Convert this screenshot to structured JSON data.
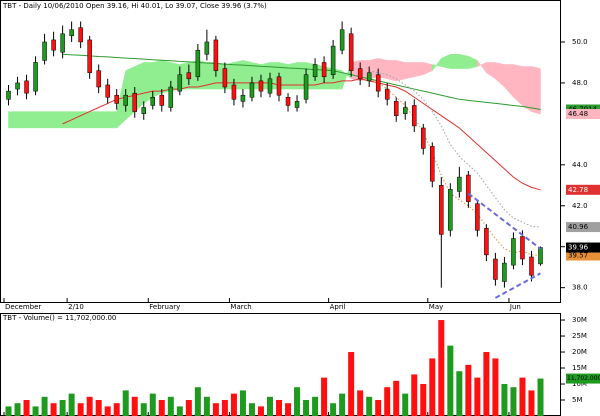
{
  "chart_data": {
    "type": "candlestick",
    "title": "TBT - Daily 10/06/2010 Open 39.16, Hi 40.01, Lo 39.07, Close 39.96 (3.7%)",
    "categories": [
      "December",
      null,
      null,
      null,
      null,
      null,
      null,
      "2/10",
      null,
      null,
      null,
      null,
      null,
      null,
      null,
      null,
      "February",
      null,
      null,
      null,
      null,
      null,
      null,
      null,
      null,
      "March",
      null,
      null,
      null,
      null,
      null,
      null,
      null,
      null,
      null,
      null,
      "April",
      null,
      null,
      null,
      null,
      null,
      null,
      null,
      null,
      null,
      null,
      "May",
      null,
      null,
      null,
      null,
      null,
      null,
      null,
      null,
      "Jun",
      null,
      null,
      null
    ],
    "open": [
      47.2,
      47.7,
      48.1,
      47.6,
      49.1,
      50.1,
      49.5,
      50.3,
      50.7,
      50.1,
      48.6,
      47.9,
      47.4,
      46.9,
      47.5,
      46.5,
      46.9,
      47.4,
      46.8,
      47.6,
      48.5,
      48.3,
      49.4,
      50.1,
      48.7,
      47.9,
      47.1,
      47.3,
      48.1,
      47.5,
      48.3,
      47.3,
      46.8,
      47.2,
      48.3,
      49.0,
      48.4,
      49.6,
      50.4,
      48.7,
      48.1,
      48.4,
      47.7,
      47.1,
      46.5,
      46.9,
      45.8,
      44.9,
      43.0,
      40.8,
      42.7,
      43.5,
      42.1,
      40.9,
      39.4,
      38.3,
      39.1,
      40.5,
      39.5,
      39.16
    ],
    "high": [
      47.9,
      48.3,
      48.4,
      49.3,
      50.4,
      50.5,
      50.8,
      51.0,
      51.0,
      50.3,
      48.9,
      48.2,
      47.7,
      47.7,
      47.8,
      47.1,
      47.6,
      47.7,
      48.1,
      48.8,
      48.9,
      49.9,
      50.6,
      50.3,
      49.0,
      48.2,
      47.7,
      48.3,
      48.4,
      48.5,
      48.5,
      47.5,
      47.4,
      48.7,
      49.2,
      49.3,
      50.1,
      51.0,
      50.7,
      49.0,
      48.8,
      48.7,
      48.0,
      47.3,
      47.1,
      47.2,
      46.0,
      45.1,
      43.4,
      43.1,
      43.9,
      43.7,
      42.3,
      41.1,
      39.7,
      39.5,
      40.7,
      40.8,
      39.8,
      40.01
    ],
    "low": [
      46.9,
      47.4,
      47.2,
      47.4,
      48.9,
      49.3,
      49.2,
      50.0,
      49.7,
      48.2,
      47.5,
      47.0,
      46.7,
      46.6,
      46.3,
      46.2,
      46.7,
      46.6,
      46.6,
      47.4,
      47.9,
      48.1,
      49.1,
      48.3,
      47.5,
      46.9,
      46.8,
      47.1,
      47.3,
      47.3,
      47.1,
      46.6,
      46.6,
      47.0,
      48.1,
      48.0,
      48.2,
      49.4,
      48.3,
      47.9,
      47.8,
      47.3,
      46.9,
      46.1,
      46.2,
      45.6,
      44.5,
      42.9,
      38.0,
      40.5,
      42.4,
      41.9,
      40.5,
      39.3,
      38.1,
      38.0,
      38.9,
      39.1,
      38.3,
      39.07
    ],
    "close": [
      47.6,
      48.0,
      47.5,
      49.0,
      50.0,
      49.6,
      50.4,
      50.6,
      50.0,
      48.5,
      47.8,
      47.3,
      47.0,
      47.4,
      46.6,
      46.8,
      47.3,
      46.9,
      47.8,
      48.4,
      48.2,
      49.6,
      50.0,
      48.6,
      47.8,
      47.2,
      47.4,
      48.0,
      47.6,
      48.2,
      47.4,
      46.9,
      47.1,
      48.4,
      48.9,
      48.3,
      49.8,
      50.6,
      48.6,
      48.2,
      48.5,
      47.6,
      47.2,
      46.4,
      46.8,
      45.9,
      44.8,
      43.2,
      40.6,
      42.8,
      43.4,
      42.2,
      40.8,
      39.6,
      38.4,
      39.2,
      40.4,
      39.4,
      38.6,
      39.96
    ],
    "up_color": "#1e9b1e",
    "down_color": "#ff1010",
    "ylim": [
      37.3,
      52.05
    ],
    "yticks": [
      {
        "value": 38,
        "label": "38.0"
      },
      {
        "value": 40,
        "label": "40.0"
      },
      {
        "value": 42,
        "label": "42.0"
      },
      {
        "value": 44,
        "label": "44.0"
      },
      {
        "value": 48,
        "label": "48.0"
      },
      {
        "value": 50,
        "label": "50.0"
      }
    ],
    "cloud": {
      "span_a": [
        46.6,
        46.6,
        46.6,
        46.6,
        46.6,
        46.6,
        46.6,
        46.6,
        46.6,
        46.6,
        46.6,
        46.6,
        46.6,
        48.6,
        48.8,
        49.0,
        49.0,
        49.1,
        49.0,
        48.9,
        49.0,
        49.1,
        49.0,
        49.0,
        48.9,
        49.0,
        49.1,
        49.0,
        48.9,
        49.0,
        49.0,
        48.9,
        49.0,
        49.0,
        48.9,
        48.8,
        48.7,
        48.6,
        48.2,
        48.1,
        48.2,
        48.3,
        48.2,
        48.1,
        48.2,
        48.3,
        48.4,
        48.6,
        49.2,
        49.4,
        49.4,
        49.3,
        49.1,
        48.5,
        48.2,
        47.8,
        47.3,
        46.9,
        46.6,
        46.48
      ],
      "span_b": [
        45.8,
        45.8,
        45.8,
        45.8,
        45.8,
        45.8,
        45.8,
        45.8,
        45.8,
        45.8,
        45.8,
        45.8,
        45.8,
        46.2,
        46.6,
        47.0,
        47.3,
        47.5,
        47.6,
        47.7,
        47.7,
        47.7,
        47.7,
        47.7,
        47.7,
        47.7,
        47.7,
        47.7,
        47.7,
        47.7,
        47.7,
        47.7,
        47.7,
        47.7,
        47.7,
        47.7,
        47.7,
        47.7,
        49.0,
        49.1,
        49.1,
        49.2,
        49.1,
        49.1,
        49.0,
        49.0,
        49.0,
        48.9,
        48.8,
        48.7,
        48.7,
        48.7,
        48.8,
        49.0,
        49.0,
        48.9,
        48.9,
        48.8,
        48.8,
        48.7
      ],
      "up_color": "#90ee90",
      "down_color": "#ffb6c1",
      "box_text_color": "#000000"
    },
    "lines": [
      {
        "color": "#e03030",
        "dash": false,
        "box_text_color": "#ffffff",
        "values": [
          null,
          null,
          null,
          null,
          null,
          null,
          46.0,
          46.2,
          46.4,
          46.6,
          46.8,
          47.0,
          47.2,
          47.3,
          47.4,
          47.5,
          47.6,
          47.6,
          47.7,
          47.7,
          47.8,
          47.8,
          47.9,
          48.0,
          48.0,
          48.0,
          48.0,
          48.0,
          48.0,
          48.0,
          47.9,
          47.9,
          47.9,
          47.9,
          47.9,
          48.0,
          48.0,
          48.1,
          48.1,
          48.2,
          48.1,
          48.0,
          47.9,
          47.8,
          47.6,
          47.3,
          47.0,
          46.7,
          46.4,
          46.1,
          45.8,
          45.4,
          45.0,
          44.6,
          44.2,
          43.8,
          43.4,
          43.1,
          42.9,
          42.78
        ]
      },
      {
        "color": "#2e9b2e",
        "dash": false,
        "box_text_color": "#000000",
        "values": [
          null,
          null,
          null,
          null,
          null,
          null,
          49.4,
          49.37,
          49.35,
          49.32,
          49.29,
          49.27,
          49.24,
          49.21,
          49.19,
          49.16,
          49.13,
          49.11,
          49.08,
          49.05,
          49.03,
          49.0,
          48.97,
          48.95,
          48.92,
          48.89,
          48.87,
          48.84,
          48.81,
          48.79,
          48.76,
          48.73,
          48.71,
          48.68,
          48.65,
          48.63,
          48.6,
          48.5,
          48.4,
          48.3,
          48.2,
          48.1,
          48.0,
          47.9,
          47.8,
          47.7,
          47.6,
          47.5,
          47.4,
          47.3,
          47.2,
          47.15,
          47.1,
          47.05,
          47.0,
          46.95,
          46.9,
          46.85,
          46.78,
          46.7014
        ]
      },
      {
        "color": "#a0a0a0",
        "dash": true,
        "box_text_color": "#000000",
        "values": [
          null,
          null,
          null,
          null,
          null,
          null,
          null,
          null,
          null,
          null,
          null,
          null,
          null,
          null,
          null,
          null,
          null,
          null,
          null,
          null,
          null,
          null,
          null,
          null,
          null,
          null,
          null,
          null,
          null,
          null,
          null,
          null,
          null,
          null,
          null,
          null,
          null,
          null,
          null,
          null,
          48.6,
          48.5,
          48.4,
          48.2,
          47.9,
          47.6,
          47.2,
          46.6,
          45.9,
          45.0,
          44.4,
          44.0,
          43.6,
          43.0,
          42.4,
          41.8,
          41.4,
          41.2,
          41.0,
          40.96
        ]
      },
      {
        "color": "#e69138",
        "dash": true,
        "box_text_color": "#000000",
        "values": [
          null,
          null,
          null,
          null,
          null,
          null,
          null,
          null,
          null,
          null,
          null,
          null,
          null,
          null,
          null,
          null,
          null,
          null,
          null,
          null,
          null,
          null,
          null,
          null,
          null,
          null,
          null,
          null,
          null,
          null,
          null,
          null,
          null,
          null,
          null,
          null,
          null,
          null,
          null,
          null,
          48.2,
          48.0,
          47.7,
          47.3,
          46.9,
          46.3,
          45.6,
          44.6,
          43.5,
          42.6,
          42.3,
          42.0,
          41.6,
          41.0,
          40.4,
          39.9,
          39.7,
          39.8,
          39.6,
          39.57
        ]
      }
    ],
    "close_box_color": "#000000",
    "close_box_text_color": "#ffffff",
    "trendlines": [
      {
        "x": [
          51,
          59
        ],
        "y": [
          42.6,
          39.9
        ]
      },
      {
        "x": [
          54,
          59
        ],
        "y": [
          37.5,
          38.7
        ]
      }
    ],
    "trend_color": "#6a6ae0",
    "volume": {
      "title": "TBT - Volume() = 11,702,000.00",
      "values": [
        3,
        4,
        5,
        3,
        6,
        4,
        5,
        7,
        4,
        6,
        5,
        3,
        4,
        8,
        6,
        4,
        7,
        5,
        6,
        3,
        5,
        9,
        6,
        4,
        5,
        7,
        8,
        4,
        3,
        6,
        5,
        4,
        9,
        5,
        6,
        12,
        4,
        7,
        20,
        8,
        6,
        5,
        9,
        11,
        7,
        13,
        10,
        18,
        30,
        22,
        14,
        16,
        12,
        20,
        18,
        10,
        9,
        12,
        8,
        11.702
      ],
      "last_label": "11,702,000.00",
      "ylim": [
        0,
        32.2
      ],
      "yticks": [
        {
          "value": 5,
          "label": "5M"
        },
        {
          "value": 10,
          "label": "10M"
        },
        {
          "value": 15,
          "label": "15M"
        },
        {
          "value": 20,
          "label": "20M"
        },
        {
          "value": 25,
          "label": "25M"
        },
        {
          "value": 30,
          "label": "30M"
        }
      ]
    }
  }
}
